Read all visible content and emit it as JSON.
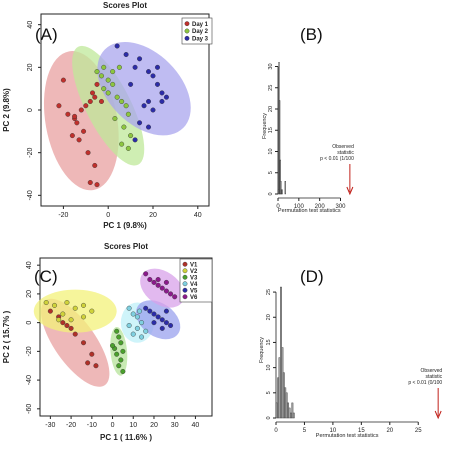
{
  "chart_data": [
    {
      "panel": "(A)",
      "type": "scatter",
      "title": "Scores Plot",
      "xlabel": "PC 1 (9.8%)",
      "ylabel": "PC 2 (9.8%)",
      "xlim": [
        -30,
        45
      ],
      "ylim": [
        -45,
        45
      ],
      "xticks": [
        "-20",
        "0",
        "20",
        "40"
      ],
      "yticks": [
        "-40",
        "-20",
        "0",
        "20",
        "40"
      ],
      "legend_position": "top-right",
      "series": [
        {
          "name": "Day 1",
          "color": "#c0302c",
          "fill": "#e8a0a0",
          "ellipse": {
            "cx": -12,
            "cy": -5,
            "rx": 16,
            "ry": 33,
            "angle_deg": -10
          },
          "points": [
            [
              -20,
              14
            ],
            [
              -22,
              2
            ],
            [
              -18,
              -2
            ],
            [
              -15,
              -4
            ],
            [
              -14,
              -6
            ],
            [
              -12,
              0
            ],
            [
              -10,
              2
            ],
            [
              -8,
              4
            ],
            [
              -7,
              8
            ],
            [
              -6,
              6
            ],
            [
              -5,
              12
            ],
            [
              -11,
              -10
            ],
            [
              -13,
              -14
            ],
            [
              -16,
              -12
            ],
            [
              -9,
              -20
            ],
            [
              -6,
              -26
            ],
            [
              -8,
              -34
            ],
            [
              -5,
              -35
            ],
            [
              -15,
              -3
            ],
            [
              -3,
              4
            ]
          ]
        },
        {
          "name": "Day 2",
          "color": "#8cc63f",
          "fill": "#bfe89a",
          "ellipse": {
            "cx": 0,
            "cy": 2,
            "rx": 10,
            "ry": 31,
            "angle_deg": -27
          },
          "points": [
            [
              -5,
              18
            ],
            [
              -3,
              16
            ],
            [
              0,
              14
            ],
            [
              2,
              12
            ],
            [
              -2,
              10
            ],
            [
              0,
              8
            ],
            [
              4,
              6
            ],
            [
              6,
              4
            ],
            [
              8,
              2
            ],
            [
              9,
              -2
            ],
            [
              3,
              -4
            ],
            [
              7,
              -8
            ],
            [
              10,
              -12
            ],
            [
              6,
              -16
            ],
            [
              9,
              -18
            ],
            [
              -2,
              20
            ],
            [
              2,
              18
            ],
            [
              5,
              20
            ]
          ]
        },
        {
          "name": "Day 3",
          "color": "#2c2ca8",
          "fill": "#a9a6ee",
          "ellipse": {
            "cx": 16,
            "cy": 10,
            "rx": 16,
            "ry": 26,
            "angle_deg": -45
          },
          "points": [
            [
              4,
              30
            ],
            [
              8,
              26
            ],
            [
              12,
              20
            ],
            [
              14,
              24
            ],
            [
              18,
              18
            ],
            [
              20,
              16
            ],
            [
              22,
              12
            ],
            [
              24,
              8
            ],
            [
              26,
              6
            ],
            [
              18,
              4
            ],
            [
              16,
              2
            ],
            [
              20,
              0
            ],
            [
              14,
              -6
            ],
            [
              18,
              -8
            ],
            [
              10,
              12
            ],
            [
              22,
              20
            ],
            [
              24,
              4
            ],
            [
              12,
              -14
            ]
          ]
        }
      ]
    },
    {
      "panel": "(B)",
      "type": "bar",
      "xlabel": "Permutation test statistics",
      "ylabel": "Frequency",
      "xlim": [
        0,
        360
      ],
      "ylim": [
        0,
        32
      ],
      "xticks": [
        "0",
        "100",
        "200",
        "300"
      ],
      "yticks": [
        "0",
        "5",
        "10",
        "15",
        "20",
        "25",
        "30"
      ],
      "bins": [
        [
          0,
          3,
          1
        ],
        [
          3,
          6,
          31
        ],
        [
          6,
          9,
          22
        ],
        [
          9,
          12,
          8
        ],
        [
          12,
          15,
          3
        ],
        [
          15,
          18,
          1
        ],
        [
          18,
          21,
          1
        ],
        [
          33,
          36,
          3
        ]
      ],
      "annotation": {
        "text": [
          "Observed",
          "statistic",
          "p < 0.01 (1/100"
        ],
        "x": 345
      }
    },
    {
      "panel": "(C)",
      "type": "scatter",
      "title": "Scores Plot",
      "xlabel": "PC 1 ( 11.6% )",
      "ylabel": "PC 2 ( 15.7% )",
      "xlim": [
        -35,
        48
      ],
      "ylim": [
        -65,
        45
      ],
      "xticks": [
        "-30",
        "-20",
        "-10",
        "0",
        "10",
        "20",
        "30",
        "40"
      ],
      "yticks": [
        "-60",
        "-40",
        "-20",
        "0",
        "20",
        "40"
      ],
      "legend_position": "top-right",
      "series": [
        {
          "name": "V1",
          "color": "#b03028",
          "fill": "#e8a0a0",
          "ellipse": {
            "cx": -18,
            "cy": -14,
            "rx": 10,
            "ry": 36,
            "angle_deg": -35
          },
          "points": [
            [
              -30,
              8
            ],
            [
              -26,
              4
            ],
            [
              -24,
              0
            ],
            [
              -22,
              -2
            ],
            [
              -20,
              -4
            ],
            [
              -18,
              -8
            ],
            [
              -14,
              -14
            ],
            [
              -10,
              -22
            ],
            [
              -8,
              -30
            ],
            [
              -12,
              -28
            ]
          ]
        },
        {
          "name": "V2",
          "color": "#cfd23a",
          "fill": "#f3f17a",
          "ellipse": {
            "cx": -18,
            "cy": 8,
            "rx": 20,
            "ry": 15,
            "angle_deg": 0
          },
          "points": [
            [
              -32,
              14
            ],
            [
              -28,
              12
            ],
            [
              -22,
              14
            ],
            [
              -18,
              10
            ],
            [
              -14,
              12
            ],
            [
              -24,
              6
            ],
            [
              -20,
              2
            ],
            [
              -14,
              4
            ],
            [
              -10,
              8
            ],
            [
              -26,
              2
            ]
          ]
        },
        {
          "name": "V3",
          "color": "#4aa02c",
          "fill": "#b6e39a",
          "ellipse": {
            "cx": 3,
            "cy": -20,
            "rx": 4,
            "ry": 17,
            "angle_deg": -5
          },
          "points": [
            [
              2,
              -6
            ],
            [
              3,
              -10
            ],
            [
              4,
              -14
            ],
            [
              1,
              -18
            ],
            [
              2,
              -22
            ],
            [
              4,
              -26
            ],
            [
              3,
              -30
            ],
            [
              5,
              -34
            ],
            [
              0,
              -16
            ],
            [
              5,
              -20
            ]
          ]
        },
        {
          "name": "V4",
          "color": "#7fd0e0",
          "fill": "#bff0f8",
          "ellipse": {
            "cx": 12,
            "cy": 0,
            "rx": 8,
            "ry": 14,
            "angle_deg": 0
          },
          "points": [
            [
              8,
              10
            ],
            [
              10,
              6
            ],
            [
              12,
              4
            ],
            [
              14,
              0
            ],
            [
              12,
              -4
            ],
            [
              10,
              -8
            ],
            [
              14,
              -10
            ],
            [
              16,
              -6
            ],
            [
              8,
              -2
            ],
            [
              13,
              8
            ]
          ]
        },
        {
          "name": "V5",
          "color": "#2c2ca8",
          "fill": "#9aa2ee",
          "ellipse": {
            "cx": 22,
            "cy": 2,
            "rx": 8,
            "ry": 17,
            "angle_deg": -55
          },
          "points": [
            [
              16,
              10
            ],
            [
              18,
              8
            ],
            [
              20,
              6
            ],
            [
              22,
              4
            ],
            [
              24,
              2
            ],
            [
              26,
              0
            ],
            [
              28,
              -2
            ],
            [
              20,
              0
            ],
            [
              24,
              -4
            ],
            [
              26,
              8
            ]
          ]
        },
        {
          "name": "V6",
          "color": "#8c1a8c",
          "fill": "#d8a2ea",
          "ellipse": {
            "cx": 24,
            "cy": 24,
            "rx": 8,
            "ry": 17,
            "angle_deg": -55
          },
          "points": [
            [
              16,
              34
            ],
            [
              18,
              30
            ],
            [
              20,
              28
            ],
            [
              22,
              26
            ],
            [
              24,
              24
            ],
            [
              26,
              22
            ],
            [
              28,
              20
            ],
            [
              30,
              18
            ],
            [
              22,
              30
            ],
            [
              26,
              28
            ]
          ]
        }
      ]
    },
    {
      "panel": "(D)",
      "type": "bar",
      "xlabel": "Permutation test statistics",
      "ylabel": "Frequency",
      "xlim": [
        0,
        29
      ],
      "ylim": [
        0,
        27
      ],
      "xticks": [
        "0",
        "5",
        "10",
        "15",
        "20",
        "25"
      ],
      "yticks": [
        "0",
        "5",
        "10",
        "15",
        "20",
        "25"
      ],
      "bins": [
        [
          0,
          0.25,
          3
        ],
        [
          0.25,
          0.5,
          8
        ],
        [
          0.5,
          0.75,
          12
        ],
        [
          0.75,
          1.0,
          26
        ],
        [
          1.0,
          1.25,
          14
        ],
        [
          1.25,
          1.5,
          9
        ],
        [
          1.5,
          1.75,
          6
        ],
        [
          1.75,
          2.0,
          5
        ],
        [
          2.0,
          2.25,
          3
        ],
        [
          2.25,
          2.5,
          2
        ],
        [
          2.5,
          2.75,
          1
        ],
        [
          2.75,
          3.0,
          3
        ],
        [
          3.0,
          3.25,
          1
        ]
      ],
      "annotation": {
        "text": [
          "Observed",
          "statistic",
          "p < 0.01 (0/100"
        ],
        "x": 28.5
      }
    }
  ]
}
